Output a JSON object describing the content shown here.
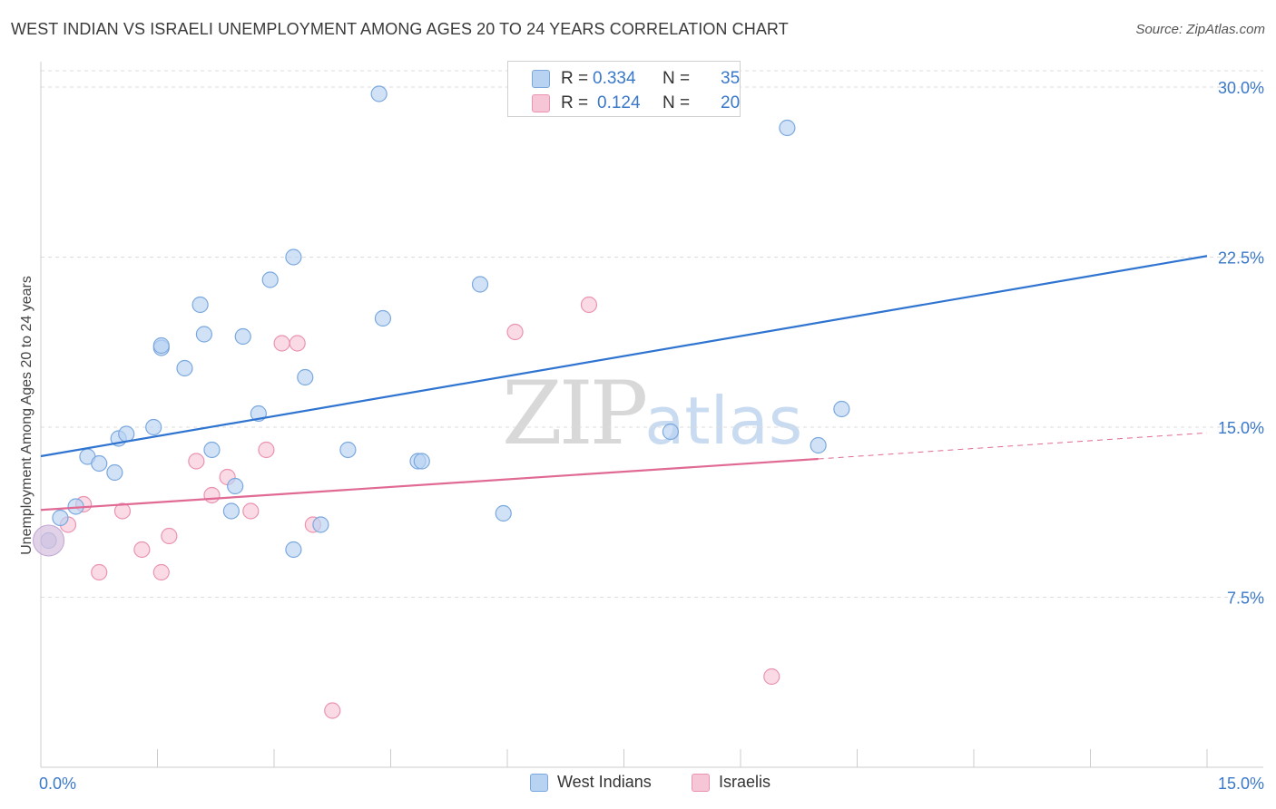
{
  "header": {
    "title": "WEST INDIAN VS ISRAELI UNEMPLOYMENT AMONG AGES 20 TO 24 YEARS CORRELATION CHART",
    "source": "Source: ZipAtlas.com"
  },
  "legend_stats": {
    "row1": {
      "r_label": "R =",
      "r_value": "0.334",
      "n_label": "N =",
      "n_value": "35"
    },
    "row2": {
      "r_label": "R =",
      "r_value": "0.124",
      "n_label": "N =",
      "n_value": "20"
    }
  },
  "watermark": {
    "zip": "ZIP",
    "atlas": "atlas"
  },
  "colors": {
    "blue_fill": "#b8d2f2",
    "blue_stroke": "#7aa8de",
    "blue_line": "#2f74d0",
    "pink_fill": "#f7c6d6",
    "pink_stroke": "#ea93b0",
    "pink_line": "#e06a94",
    "grid": "#dddddd",
    "axis_text": "#3a78c9"
  },
  "chart_data": {
    "type": "scatter",
    "title": "WEST INDIAN VS ISRAELI UNEMPLOYMENT AMONG AGES 20 TO 24 YEARS CORRELATION CHART",
    "xlabel": "",
    "ylabel": "Unemployment Among Ages 20 to 24 years",
    "xlim": [
      0,
      15
    ],
    "ylim": [
      0,
      30
    ],
    "x_tick_labels": [
      "0.0%",
      "15.0%"
    ],
    "y_ticks": [
      7.5,
      15.0,
      22.5,
      30.0
    ],
    "y_tick_labels": [
      "7.5%",
      "15.0%",
      "22.5%",
      "30.0%"
    ],
    "grid": true,
    "legend_position": "bottom-center",
    "series": [
      {
        "name": "West Indians",
        "color": "#b8d2f2",
        "points": [
          [
            0.25,
            11.0
          ],
          [
            0.45,
            11.5
          ],
          [
            0.6,
            13.7
          ],
          [
            0.95,
            13.0
          ],
          [
            0.75,
            13.4
          ],
          [
            1.0,
            14.5
          ],
          [
            1.1,
            14.7
          ],
          [
            1.45,
            15.0
          ],
          [
            1.55,
            18.5
          ],
          [
            1.55,
            18.6
          ],
          [
            1.85,
            17.6
          ],
          [
            2.05,
            20.4
          ],
          [
            2.1,
            19.1
          ],
          [
            2.2,
            14.0
          ],
          [
            2.45,
            11.3
          ],
          [
            2.5,
            12.4
          ],
          [
            2.6,
            19.0
          ],
          [
            2.8,
            15.6
          ],
          [
            2.95,
            21.5
          ],
          [
            3.25,
            9.6
          ],
          [
            3.25,
            22.5
          ],
          [
            3.4,
            17.2
          ],
          [
            3.6,
            10.7
          ],
          [
            3.95,
            14.0
          ],
          [
            4.4,
            19.8
          ],
          [
            4.85,
            13.5
          ],
          [
            4.9,
            13.5
          ],
          [
            5.65,
            21.3
          ],
          [
            5.95,
            11.2
          ],
          [
            4.35,
            29.7
          ],
          [
            8.1,
            14.8
          ],
          [
            9.6,
            28.2
          ],
          [
            10.0,
            14.2
          ],
          [
            10.3,
            15.8
          ],
          [
            0.1,
            10.0
          ]
        ]
      },
      {
        "name": "Israelis",
        "color": "#f7c6d6",
        "points": [
          [
            0.1,
            10.0
          ],
          [
            0.35,
            10.7
          ],
          [
            0.55,
            11.6
          ],
          [
            0.75,
            8.6
          ],
          [
            1.05,
            11.3
          ],
          [
            1.3,
            9.6
          ],
          [
            1.55,
            8.6
          ],
          [
            1.65,
            10.2
          ],
          [
            2.0,
            13.5
          ],
          [
            2.2,
            12.0
          ],
          [
            2.4,
            12.8
          ],
          [
            2.7,
            11.3
          ],
          [
            2.9,
            14.0
          ],
          [
            3.1,
            18.7
          ],
          [
            3.3,
            18.7
          ],
          [
            3.5,
            10.7
          ],
          [
            3.75,
            2.5
          ],
          [
            6.1,
            19.2
          ],
          [
            7.05,
            20.4
          ],
          [
            9.4,
            4.0
          ]
        ]
      }
    ],
    "trendlines": [
      {
        "series": "West Indians",
        "x": [
          0,
          15
        ],
        "y": [
          13.72,
          22.55
        ],
        "style": "solid"
      },
      {
        "series": "Israelis",
        "x": [
          0,
          10
        ],
        "y": [
          11.35,
          13.6
        ],
        "style": "solid"
      },
      {
        "series": "Israelis",
        "x": [
          10,
          15
        ],
        "y": [
          13.6,
          14.75
        ],
        "style": "dashed"
      }
    ]
  }
}
